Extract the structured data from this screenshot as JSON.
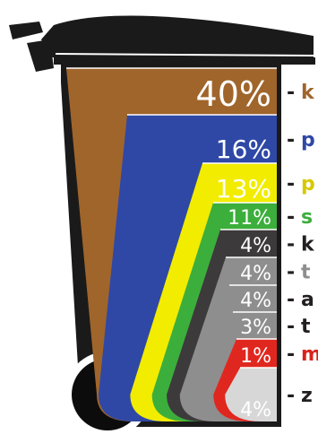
{
  "chart_data": {
    "type": "bar",
    "title": "",
    "xlabel": "",
    "ylabel": "",
    "categories": [
      "k",
      "p",
      "p",
      "s",
      "k",
      "t",
      "a",
      "t",
      "m",
      "z"
    ],
    "values": [
      40,
      16,
      13,
      11,
      4,
      4,
      4,
      3,
      1,
      4
    ],
    "labels": [
      "40%",
      "16%",
      "13%",
      "11%",
      "4%",
      "4%",
      "4%",
      "3%",
      "1%",
      "4%"
    ],
    "colors": [
      "#a0652b",
      "#2f48a6",
      "#f2ec00",
      "#3cae3c",
      "#3d3a3b",
      "#8e8e8e",
      "#8e8e8e",
      "#8e8e8e",
      "#e0271f",
      "#d7d7d7"
    ],
    "label_colors": [
      "#a0652b",
      "#2f48a6",
      "#d6c800",
      "#3cae3c",
      "#231f20",
      "#8e8e8e",
      "#231f20",
      "#231f20",
      "#d8231b",
      "#231f20"
    ],
    "pct_text_colors": [
      "#ffffff",
      "#ffffff",
      "#ffffff",
      "#ffffff",
      "#ffffff",
      "#ffffff",
      "#ffffff",
      "#ffffff",
      "#ffffff",
      "#ffffff"
    ],
    "bin_color": "#1a1a1a",
    "legend": "right"
  }
}
